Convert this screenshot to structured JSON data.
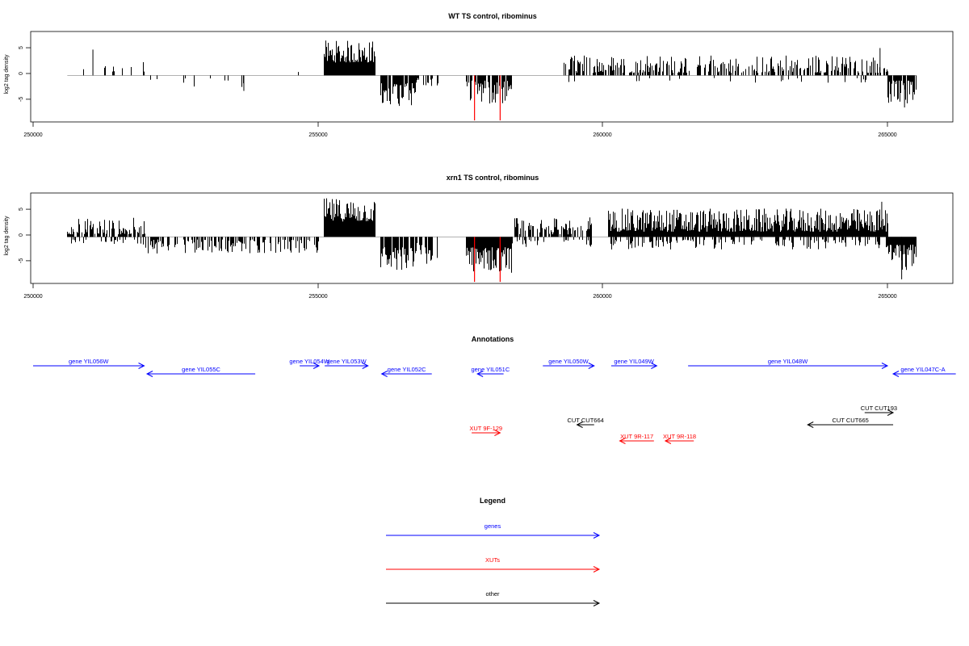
{
  "chart_data": [
    {
      "type": "bar",
      "title": "WT TS control, ribominus",
      "xlabel": "",
      "ylabel": "log2 tag density",
      "xlim": [
        250000,
        266000
      ],
      "ylim": [
        -9,
        8.5
      ],
      "x_ticks": [
        250000,
        255000,
        260000,
        265000
      ],
      "x_tick_labels": [
        "250000",
        "255000",
        "260000",
        "265000"
      ],
      "y_ticks": [
        -5,
        0,
        5
      ],
      "y_tick_labels": [
        "-5",
        "0",
        "5"
      ],
      "baseline": {
        "from": 250600,
        "to": 265500
      },
      "segments": [
        {
          "from": 250600,
          "to": 251950,
          "sign": 1,
          "density": 0.15,
          "min": 0.5,
          "max": 2.8
        },
        {
          "from": 251950,
          "to": 253700,
          "sign": -1,
          "density": 0.1,
          "min": 0.5,
          "max": 2.5
        },
        {
          "from": 254200,
          "to": 254800,
          "sign": 1,
          "density": 0.06,
          "min": 0.5,
          "max": 2.0
        },
        {
          "from": 255100,
          "to": 256000,
          "sign": 1,
          "density": 1.0,
          "min": 2.5,
          "max": 6.8
        },
        {
          "from": 256100,
          "to": 256700,
          "sign": -1,
          "density": 0.9,
          "min": 1.5,
          "max": 6.2
        },
        {
          "from": 256700,
          "to": 257100,
          "sign": -1,
          "density": 0.35,
          "min": 0.5,
          "max": 2.5
        },
        {
          "from": 257600,
          "to": 258400,
          "sign": -1,
          "density": 0.85,
          "min": 1.0,
          "max": 5.5
        },
        {
          "from": 259300,
          "to": 265000,
          "sign": 1,
          "density": 0.55,
          "min": 0.5,
          "max": 4.0
        },
        {
          "from": 259300,
          "to": 265000,
          "sign": -1,
          "density": 0.05,
          "min": 0.5,
          "max": 1.5
        },
        {
          "from": 265000,
          "to": 265500,
          "sign": -1,
          "density": 0.8,
          "min": 1.0,
          "max": 5.5
        }
      ],
      "spikes": [
        {
          "x": 251050,
          "y": 5.0
        },
        {
          "x": 253700,
          "y": -3.0
        },
        {
          "x": 264870,
          "y": 5.3
        },
        {
          "x": 265300,
          "y": -6.2
        }
      ],
      "highlighted_peaks": [
        {
          "x": 257750,
          "y": -8.7
        },
        {
          "x": 258200,
          "y": -8.7
        }
      ]
    },
    {
      "type": "bar",
      "title": "xrn1 TS control, ribominus",
      "xlabel": "",
      "ylabel": "log2 tag density",
      "xlim": [
        250000,
        266000
      ],
      "ylim": [
        -9,
        8.5
      ],
      "x_ticks": [
        250000,
        255000,
        260000,
        265000
      ],
      "x_tick_labels": [
        "250000",
        "255000",
        "260000",
        "265000"
      ],
      "y_ticks": [
        -5,
        0,
        5
      ],
      "y_tick_labels": [
        "-5",
        "0",
        "5"
      ],
      "baseline": {
        "from": 250600,
        "to": 265500
      },
      "segments": [
        {
          "from": 250600,
          "to": 251950,
          "sign": 1,
          "density": 0.75,
          "min": 0.5,
          "max": 3.8
        },
        {
          "from": 250600,
          "to": 251950,
          "sign": -1,
          "density": 0.2,
          "min": 0.5,
          "max": 1.5
        },
        {
          "from": 251950,
          "to": 255000,
          "sign": -1,
          "density": 0.55,
          "min": 0.5,
          "max": 3.2
        },
        {
          "from": 255100,
          "to": 256000,
          "sign": 1,
          "density": 1.0,
          "min": 3.0,
          "max": 7.5
        },
        {
          "from": 256100,
          "to": 256700,
          "sign": -1,
          "density": 0.9,
          "min": 2.0,
          "max": 6.5
        },
        {
          "from": 256700,
          "to": 257100,
          "sign": -1,
          "density": 0.55,
          "min": 1.0,
          "max": 5.5
        },
        {
          "from": 257600,
          "to": 258400,
          "sign": -1,
          "density": 1.0,
          "min": 2.0,
          "max": 7.0
        },
        {
          "from": 258400,
          "to": 259800,
          "sign": 1,
          "density": 0.6,
          "min": 0.5,
          "max": 3.8
        },
        {
          "from": 258400,
          "to": 259800,
          "sign": -1,
          "density": 0.3,
          "min": 0.5,
          "max": 2.0
        },
        {
          "from": 260100,
          "to": 265000,
          "sign": 1,
          "density": 1.0,
          "min": 1.0,
          "max": 5.5
        },
        {
          "from": 260100,
          "to": 265000,
          "sign": -1,
          "density": 0.3,
          "min": 0.5,
          "max": 2.5
        },
        {
          "from": 265000,
          "to": 265500,
          "sign": -1,
          "density": 1.0,
          "min": 1.5,
          "max": 6.5
        }
      ],
      "spikes": [
        {
          "x": 264900,
          "y": 6.8
        },
        {
          "x": 265250,
          "y": -8.2
        }
      ],
      "highlighted_peaks": [
        {
          "x": 257750,
          "y": -8.7
        },
        {
          "x": 258200,
          "y": -8.7
        }
      ]
    }
  ],
  "annotations": {
    "title": "Annotations",
    "features": [
      {
        "label": "gene YIL056W",
        "kind": "genes",
        "from": 250000,
        "to": 251950,
        "strand": "+",
        "row": 0
      },
      {
        "label": "gene YIL055C",
        "kind": "genes",
        "from": 252000,
        "to": 253900,
        "strand": "-",
        "row": 1
      },
      {
        "label": "gene YIL054W",
        "kind": "genes",
        "from": 254680,
        "to": 255020,
        "strand": "+",
        "row": 0
      },
      {
        "label": "gene YIL053W",
        "kind": "genes",
        "from": 255120,
        "to": 255880,
        "strand": "+",
        "row": 0
      },
      {
        "label": "gene YIL052C",
        "kind": "genes",
        "from": 256120,
        "to": 257000,
        "strand": "-",
        "row": 1
      },
      {
        "label": "gene YIL051C",
        "kind": "genes",
        "from": 257800,
        "to": 258260,
        "strand": "-",
        "row": 1
      },
      {
        "label": "gene YIL050W",
        "kind": "genes",
        "from": 258950,
        "to": 259850,
        "strand": "+",
        "row": 0
      },
      {
        "label": "gene YIL049W",
        "kind": "genes",
        "from": 260150,
        "to": 260950,
        "strand": "+",
        "row": 0
      },
      {
        "label": "gene YIL048W",
        "kind": "genes",
        "from": 261500,
        "to": 265000,
        "strand": "+",
        "row": 0
      },
      {
        "label": "gene YIL047C-A",
        "kind": "genes",
        "from": 265100,
        "to": 266200,
        "strand": "-",
        "row": 1
      },
      {
        "label": "CUT CUT193",
        "kind": "other",
        "from": 264600,
        "to": 265100,
        "strand": "+",
        "row": 2
      },
      {
        "label": "CUT CUT664",
        "kind": "other",
        "from": 259550,
        "to": 259850,
        "strand": "-",
        "row": 3
      },
      {
        "label": "CUT CUT665",
        "kind": "other",
        "from": 263600,
        "to": 265100,
        "strand": "-",
        "row": 3
      },
      {
        "label": "XUT 9F-129",
        "kind": "XUTs",
        "from": 257700,
        "to": 258200,
        "strand": "+",
        "row": 4
      },
      {
        "label": "XUT 9R-117",
        "kind": "XUTs",
        "from": 260300,
        "to": 260900,
        "strand": "-",
        "row": 5
      },
      {
        "label": "XUT 9R-118",
        "kind": "XUTs",
        "from": 261100,
        "to": 261600,
        "strand": "-",
        "row": 5
      }
    ]
  },
  "legend": {
    "title": "Legend",
    "entries": [
      {
        "label": "genes",
        "kind": "genes"
      },
      {
        "label": "XUTs",
        "kind": "XUTs"
      },
      {
        "label": "other",
        "kind": "other"
      }
    ]
  },
  "colors": {
    "genes": "#0000ff",
    "XUTs": "#ff0000",
    "other": "#000000",
    "axis": "#000000",
    "bars": "#000000",
    "highlight": "#ff0000",
    "baseline": "#999999",
    "background": "#ffffff"
  }
}
